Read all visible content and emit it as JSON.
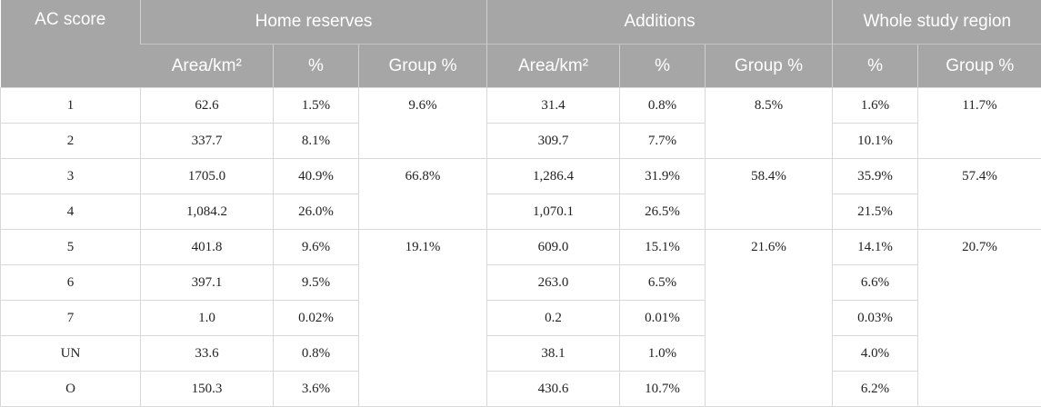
{
  "table": {
    "header_top": [
      "AC score",
      "Home reserves",
      "Additions",
      "Whole study region"
    ],
    "header_sub": [
      "Area/km²",
      "%",
      "Group %",
      "Area/km²",
      "%",
      "Group %",
      "%",
      "Group %"
    ],
    "rows": [
      {
        "score": "1",
        "home_area": "62.6",
        "home_pct": "1.5%",
        "add_area": "31.4",
        "add_pct": "0.8%",
        "whole_pct": "1.6%"
      },
      {
        "score": "2",
        "home_area": "337.7",
        "home_pct": "8.1%",
        "add_area": "309.7",
        "add_pct": "7.7%",
        "whole_pct": "10.1%"
      },
      {
        "score": "3",
        "home_area": "1705.0",
        "home_pct": "40.9%",
        "add_area": "1,286.4",
        "add_pct": "31.9%",
        "whole_pct": "35.9%"
      },
      {
        "score": "4",
        "home_area": "1,084.2",
        "home_pct": "26.0%",
        "add_area": "1,070.1",
        "add_pct": "26.5%",
        "whole_pct": "21.5%"
      },
      {
        "score": "5",
        "home_area": "401.8",
        "home_pct": "9.6%",
        "add_area": "609.0",
        "add_pct": "15.1%",
        "whole_pct": "14.1%"
      },
      {
        "score": "6",
        "home_area": "397.1",
        "home_pct": "9.5%",
        "add_area": "263.0",
        "add_pct": "6.5%",
        "whole_pct": "6.6%"
      },
      {
        "score": "7",
        "home_area": "1.0",
        "home_pct": "0.02%",
        "add_area": "0.2",
        "add_pct": "0.01%",
        "whole_pct": "0.03%"
      },
      {
        "score": "UN",
        "home_area": "33.6",
        "home_pct": "0.8%",
        "add_area": "38.1",
        "add_pct": "1.0%",
        "whole_pct": "4.0%"
      },
      {
        "score": "O",
        "home_area": "150.3",
        "home_pct": "3.6%",
        "add_area": "430.6",
        "add_pct": "10.7%",
        "whole_pct": "6.2%"
      }
    ],
    "groups": [
      {
        "home_group": "9.6%",
        "add_group": "8.5%",
        "whole_group": "11.7%"
      },
      {
        "home_group": "66.8%",
        "add_group": "58.4%",
        "whole_group": "57.4%"
      },
      {
        "home_group": "19.1%",
        "add_group": "21.6%",
        "whole_group": "20.7%"
      }
    ]
  }
}
